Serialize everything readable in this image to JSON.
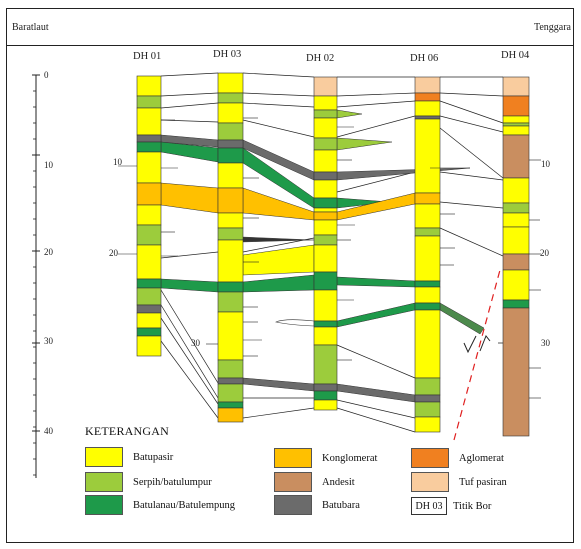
{
  "header": {
    "left_direction": "Baratlaut",
    "right_direction": "Tenggara"
  },
  "boreholes": [
    {
      "id": "DH 01"
    },
    {
      "id": "DH 03"
    },
    {
      "id": "DH 02"
    },
    {
      "id": "DH 06"
    },
    {
      "id": "DH 04"
    }
  ],
  "depth_scale": {
    "ticks": [
      "0",
      "10",
      "20",
      "30",
      "40"
    ],
    "inline_labels": [
      "10",
      "20",
      "30",
      "10",
      "20",
      "30"
    ]
  },
  "legend": {
    "title": "KETERANGAN",
    "items": [
      {
        "label": "Batupasir",
        "color": "#ffff00"
      },
      {
        "label": "Serpih/batulumpur",
        "color": "#9ccc3c"
      },
      {
        "label": "Batulanau/Batulempung",
        "color": "#1e9a4a"
      },
      {
        "label": "Konglomerat",
        "color": "#ffc000"
      },
      {
        "label": "Andesit",
        "color": "#c98e60"
      },
      {
        "label": "Batubara",
        "color": "#6b6b6b"
      },
      {
        "label": "Aglomerat",
        "color": "#f08020"
      },
      {
        "label": "Tuf pasiran",
        "color": "#f9cc9e"
      },
      {
        "label": "Titik Bor",
        "sample": "DH 03",
        "color": "#ffffff"
      }
    ]
  },
  "colors": {
    "batupasir": "#ffff00",
    "serpih": "#9ccc3c",
    "batulanau": "#1e9a4a",
    "konglomerat": "#ffc000",
    "andesit": "#c98e60",
    "batubara": "#6b6b6b",
    "aglomerat": "#f08020",
    "tuf": "#f9cc9e",
    "fault": "#e02020"
  }
}
